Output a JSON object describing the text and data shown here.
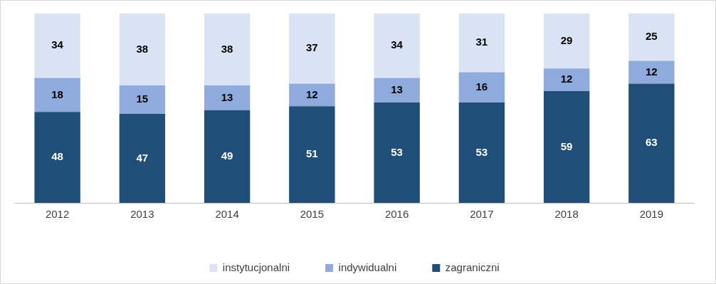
{
  "chart_data": {
    "type": "bar",
    "stacked": true,
    "data_labels": true,
    "legend": "bottom",
    "grid": false,
    "categories": [
      "2012",
      "2013",
      "2014",
      "2015",
      "2016",
      "2017",
      "2018",
      "2019"
    ],
    "series": [
      {
        "name": "zagraniczni",
        "color": "#1f4e79",
        "values": [
          48,
          47,
          49,
          51,
          53,
          53,
          59,
          63
        ]
      },
      {
        "name": "indywidualni",
        "color": "#8faadc",
        "values": [
          18,
          15,
          13,
          12,
          13,
          16,
          12,
          12
        ]
      },
      {
        "name": "instytucjonalni",
        "color": "#dae3f3",
        "values": [
          34,
          38,
          38,
          37,
          34,
          31,
          29,
          25
        ]
      }
    ]
  }
}
